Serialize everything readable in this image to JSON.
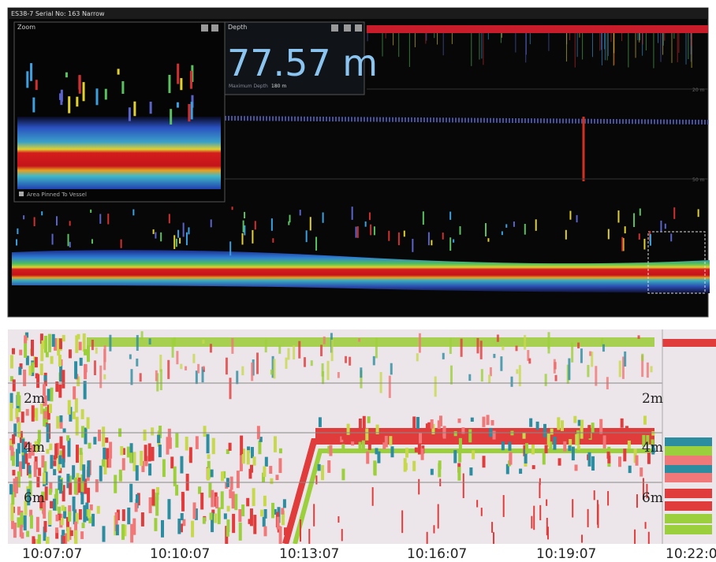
{
  "top_panel": {
    "title": "ES38-7 Serial No: 163  Narrow",
    "zoom_window": {
      "title": "Zoom",
      "footer": "Area Pinned To Vessel"
    },
    "depth_window": {
      "title": "Depth",
      "value": "77.57 m",
      "max_label": "Maximum Depth",
      "max_value": "180 m"
    },
    "depth_labels": [
      "20 m",
      "50 m"
    ]
  },
  "bottom_panel": {
    "depth_labels": [
      "2m",
      "4m",
      "6m"
    ],
    "time_labels": [
      "10:07:07",
      "10:10:07",
      "10:13:07",
      "10:16:07",
      "10:19:07",
      "10:22:0"
    ]
  }
}
